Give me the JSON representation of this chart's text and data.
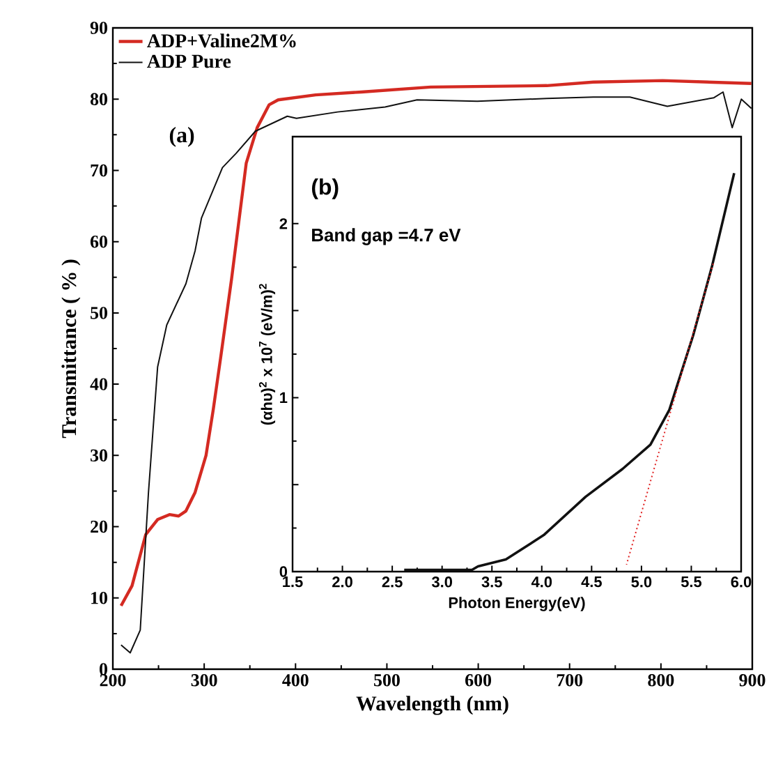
{
  "chart_data": [
    {
      "type": "line",
      "xlabel": "Wavelength (nm)",
      "ylabel": "Transmittance ( % )",
      "xlim": [
        200,
        900
      ],
      "ylim": [
        0,
        90
      ],
      "xticks": [
        200,
        300,
        400,
        500,
        600,
        700,
        800,
        900
      ],
      "yticks": [
        0,
        10,
        20,
        30,
        40,
        50,
        60,
        70,
        80,
        90
      ],
      "legend": "top left",
      "grid": false,
      "annotations": [
        "(a)"
      ],
      "series": [
        {
          "name": "ADP+Valine2M%",
          "color": "#d42a22",
          "x": [
            209,
            221,
            236,
            249,
            262,
            272,
            280,
            290,
            302,
            310,
            318,
            330,
            346,
            358,
            371,
            381,
            422,
            472,
            548,
            675,
            726,
            802,
            899
          ],
          "values": [
            8.9,
            11.7,
            18.9,
            21,
            21.7,
            21.5,
            22.2,
            24.8,
            30,
            36.5,
            43.7,
            54.8,
            71,
            76,
            79.2,
            79.9,
            80.6,
            81,
            81.7,
            81.9,
            82.4,
            82.6,
            82.2
          ]
        },
        {
          "name": "ADP Pure",
          "color": "#111111",
          "x": [
            209,
            219,
            230,
            239,
            249,
            259,
            280,
            290,
            297,
            320,
            335,
            356,
            391,
            401,
            446,
            498,
            533,
            599,
            675,
            726,
            766,
            807,
            858,
            868,
            878,
            888,
            899
          ],
          "values": [
            3.4,
            2.3,
            5.5,
            24.8,
            42.4,
            48.3,
            54.1,
            58.7,
            63.3,
            70.4,
            72.4,
            75.5,
            77.6,
            77.3,
            78.2,
            78.9,
            79.9,
            79.7,
            80.1,
            80.3,
            80.3,
            79,
            80.2,
            81,
            76,
            80,
            78.7
          ]
        }
      ]
    },
    {
      "type": "line",
      "xlabel": "Photon Energy(eV)",
      "ylabel": "(αhυ)$^{2}$ x 10$^{7}$ (eV/m)$^{2}$",
      "xlim": [
        1.5,
        6.0
      ],
      "ylim": [
        0,
        2.5
      ],
      "xticks": [
        1.5,
        {
          "value": 2,
          "label": "2.0"
        },
        2.5,
        {
          "value": 3,
          "label": "3.0"
        },
        3.5,
        {
          "value": 4,
          "label": "4.0"
        },
        4.5,
        {
          "value": 5,
          "label": "5.0"
        },
        5.5,
        {
          "value": 6,
          "label": "6.0"
        }
      ],
      "yticks": [
        0,
        {
          "value": 0.5,
          "label": null
        },
        1,
        {
          "value": 1.5,
          "label": null
        },
        2
      ],
      "annotations": [
        "(b)",
        "Band gap =4.7 eV"
      ],
      "series": [
        {
          "color": "#111111",
          "x": [
            2.62,
            3.3,
            3.36,
            3.64,
            4.02,
            4.44,
            4.81,
            5.09,
            5.28,
            5.52,
            5.71,
            5.93
          ],
          "values": [
            0.01,
            0.01,
            0.03,
            0.07,
            0.21,
            0.43,
            0.59,
            0.73,
            0.93,
            1.36,
            1.76,
            2.29
          ]
        },
        {
          "color": "#e02020",
          "line_style": "dotted",
          "x": [
            5.72,
            4.85
          ],
          "values": [
            1.77,
            0.04
          ]
        }
      ]
    }
  ]
}
